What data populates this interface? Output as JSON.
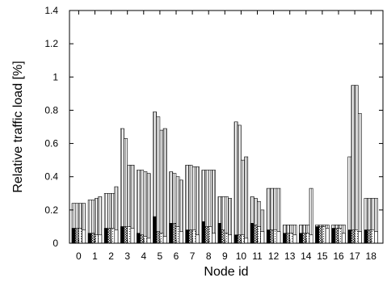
{
  "chart_data": {
    "type": "bar",
    "xlabel": "Node id",
    "ylabel": "Relative traffic load [%]",
    "ylim": [
      0,
      1.4
    ],
    "yticks": [
      "0",
      "0.2",
      "0.4",
      "0.6",
      "0.8",
      "1",
      "1.2",
      "1.4"
    ],
    "categories": [
      "0",
      "1",
      "2",
      "3",
      "4",
      "5",
      "6",
      "7",
      "8",
      "9",
      "10",
      "11",
      "12",
      "13",
      "14",
      "15",
      "16",
      "17",
      "18"
    ],
    "grid": false,
    "legend": "none",
    "series": [
      {
        "values": [
          0.24,
          0.26,
          0.3,
          0.69,
          0.44,
          0.79,
          0.43,
          0.47,
          0.44,
          0.28,
          0.73,
          0.28,
          0.33,
          0.11,
          0.11,
          0.11,
          0.11,
          0.52,
          0.27
        ]
      },
      {
        "values": [
          0.24,
          0.26,
          0.3,
          0.63,
          0.44,
          0.76,
          0.42,
          0.47,
          0.44,
          0.28,
          0.71,
          0.27,
          0.33,
          0.11,
          0.11,
          0.11,
          0.11,
          0.95,
          0.27
        ]
      },
      {
        "values": [
          0.24,
          0.27,
          0.3,
          0.47,
          0.43,
          0.68,
          0.4,
          0.46,
          0.44,
          0.28,
          0.5,
          0.25,
          0.33,
          0.11,
          0.11,
          0.11,
          0.11,
          0.95,
          0.27
        ]
      },
      {
        "values": [
          0.24,
          0.28,
          0.34,
          0.47,
          0.42,
          0.69,
          0.38,
          0.46,
          0.44,
          0.27,
          0.52,
          0.2,
          0.33,
          0.11,
          0.33,
          0.11,
          0.11,
          0.78,
          0.27
        ]
      }
    ],
    "inner_series": [
      {
        "values": [
          0.09,
          0.06,
          0.09,
          0.1,
          0.06,
          0.16,
          0.12,
          0.08,
          0.13,
          0.12,
          0.05,
          0.12,
          0.08,
          0.06,
          0.06,
          0.1,
          0.09,
          0.08,
          0.08
        ]
      },
      {
        "values": [
          0.09,
          0.06,
          0.09,
          0.1,
          0.05,
          0.07,
          0.12,
          0.08,
          0.1,
          0.08,
          0.05,
          0.11,
          0.08,
          0.06,
          0.06,
          0.1,
          0.09,
          0.08,
          0.08
        ]
      },
      {
        "values": [
          0.09,
          0.05,
          0.09,
          0.1,
          0.04,
          0.06,
          0.1,
          0.08,
          0.1,
          0.06,
          0.05,
          0.1,
          0.08,
          0.06,
          0.06,
          0.1,
          0.09,
          0.08,
          0.08
        ]
      },
      {
        "values": [
          0.08,
          0.05,
          0.08,
          0.09,
          0.03,
          0.04,
          0.07,
          0.05,
          0.06,
          0.05,
          0.03,
          0.07,
          0.07,
          0.05,
          0.05,
          0.09,
          0.06,
          0.07,
          0.07
        ]
      }
    ]
  }
}
